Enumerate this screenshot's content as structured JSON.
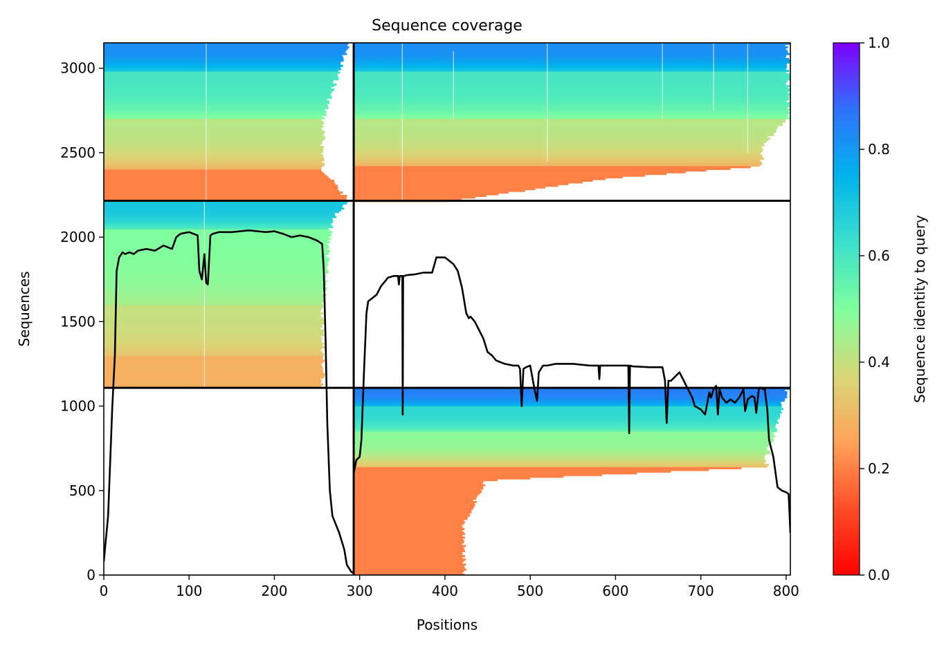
{
  "chart_data": {
    "type": "heatmap",
    "title": "Sequence coverage",
    "xlabel": "Positions",
    "ylabel": "Sequences",
    "xlim": [
      0,
      805
    ],
    "ylim": [
      0,
      3150
    ],
    "xticks": [
      0,
      100,
      200,
      300,
      400,
      500,
      600,
      700,
      800
    ],
    "yticks": [
      0,
      500,
      1000,
      1500,
      2000,
      2500,
      3000
    ],
    "colorbar": {
      "label": "Sequence identity to query",
      "range": [
        0,
        1
      ],
      "ticks": [
        "0.0",
        "0.2",
        "0.4",
        "0.6",
        "0.8",
        "1.0"
      ],
      "colormap": "rainbow_r"
    },
    "block_dividers": {
      "x": [
        293
      ],
      "y": [
        1108,
        2215
      ]
    },
    "blocks": [
      {
        "name": "top-left",
        "x": [
          0,
          293
        ],
        "y": [
          2215,
          3150
        ],
        "bands": [
          [
            3150,
            2980,
            0.82
          ],
          [
            2980,
            2700,
            0.6
          ],
          [
            2700,
            2400,
            0.42
          ],
          [
            2400,
            2215,
            0.2
          ]
        ],
        "right_edge": [
          [
            3150,
            290
          ],
          [
            3000,
            280
          ],
          [
            2700,
            260
          ],
          [
            2400,
            260
          ],
          [
            2215,
            290
          ]
        ]
      },
      {
        "name": "top-right",
        "x": [
          293,
          805
        ],
        "y": [
          2215,
          3150
        ],
        "bands": [
          [
            3150,
            2980,
            0.82
          ],
          [
            2980,
            2700,
            0.6
          ],
          [
            2700,
            2420,
            0.42
          ],
          [
            2420,
            2215,
            0.2
          ]
        ],
        "right_edge": [
          [
            3150,
            805
          ],
          [
            2700,
            805
          ],
          [
            2550,
            775
          ],
          [
            2420,
            775
          ],
          [
            2350,
            600
          ],
          [
            2215,
            410
          ]
        ]
      },
      {
        "name": "middle-left",
        "x": [
          0,
          293
        ],
        "y": [
          1108,
          2215
        ],
        "bands": [
          [
            2215,
            2050,
            0.7
          ],
          [
            2050,
            1600,
            0.5
          ],
          [
            1600,
            1300,
            0.4
          ],
          [
            1300,
            1108,
            0.28
          ]
        ],
        "right_edge": [
          [
            2215,
            290
          ],
          [
            2100,
            270
          ],
          [
            1600,
            260
          ],
          [
            1108,
            260
          ]
        ]
      },
      {
        "name": "bottom-right",
        "x": [
          293,
          805
        ],
        "y": [
          0,
          1108
        ],
        "bands": [
          [
            1108,
            1000,
            0.85
          ],
          [
            1000,
            850,
            0.65
          ],
          [
            850,
            640,
            0.48
          ],
          [
            640,
            0,
            0.2
          ]
        ],
        "right_edge": [
          [
            1108,
            805
          ],
          [
            700,
            780
          ],
          [
            640,
            780
          ],
          [
            560,
            450
          ],
          [
            300,
            425
          ],
          [
            0,
            425
          ]
        ]
      }
    ],
    "series": [
      {
        "x": [
          0,
          5,
          10,
          13,
          15,
          18,
          22,
          25,
          30,
          35,
          40,
          50,
          60,
          70,
          80,
          85,
          90,
          100,
          105,
          110,
          112,
          115,
          118,
          120,
          122,
          125,
          128,
          135,
          150,
          170,
          190,
          200,
          210,
          220,
          230,
          240,
          250,
          256,
          258,
          260,
          262,
          265,
          268,
          272,
          276,
          282,
          285,
          290,
          293,
          293,
          296,
          300,
          302,
          305,
          308,
          310,
          315,
          320,
          325,
          330,
          333,
          340,
          345,
          346,
          347,
          350,
          350.5,
          351,
          352,
          355,
          365,
          375,
          385,
          390,
          395,
          400,
          405,
          410,
          415,
          420,
          425,
          428,
          430,
          435,
          445,
          450,
          455,
          460,
          470,
          480,
          486,
          488,
          490,
          492,
          495,
          500,
          505,
          508,
          510,
          515,
          520,
          530,
          540,
          550,
          560,
          570,
          580,
          581,
          582,
          590,
          600,
          610,
          615,
          616,
          617,
          620,
          640,
          655,
          658,
          660,
          662,
          665,
          675,
          680,
          685,
          690,
          693,
          700,
          705,
          710,
          712,
          715,
          718,
          720,
          722,
          725,
          730,
          735,
          740,
          745,
          750,
          752,
          755,
          760,
          763,
          765,
          768,
          770,
          773,
          775,
          778,
          780,
          785,
          790,
          795,
          800,
          803,
          805
        ],
        "y": [
          80,
          350,
          1000,
          1300,
          1800,
          1880,
          1910,
          1900,
          1910,
          1900,
          1920,
          1930,
          1920,
          1950,
          1930,
          2000,
          2020,
          2030,
          2020,
          2010,
          1800,
          1750,
          1900,
          1730,
          1720,
          2010,
          2020,
          2030,
          2030,
          2040,
          2030,
          2035,
          2020,
          2000,
          2010,
          2000,
          1980,
          1960,
          1800,
          1400,
          900,
          500,
          350,
          300,
          250,
          150,
          60,
          20,
          10,
          600,
          680,
          700,
          800,
          1200,
          1550,
          1620,
          1640,
          1660,
          1710,
          1740,
          1760,
          1770,
          1770,
          1720,
          1770,
          1770,
          950,
          1770,
          1770,
          1775,
          1780,
          1790,
          1790,
          1880,
          1880,
          1880,
          1860,
          1840,
          1800,
          1700,
          1550,
          1520,
          1530,
          1500,
          1400,
          1320,
          1300,
          1270,
          1250,
          1240,
          1240,
          1220,
          1000,
          1220,
          1230,
          1240,
          1100,
          1030,
          1200,
          1240,
          1240,
          1250,
          1250,
          1250,
          1245,
          1240,
          1240,
          1160,
          1240,
          1240,
          1240,
          1240,
          1240,
          840,
          1240,
          1235,
          1230,
          1230,
          1150,
          900,
          1150,
          1150,
          1200,
          1150,
          1100,
          1050,
          1000,
          980,
          950,
          1080,
          1050,
          1100,
          1120,
          950,
          1100,
          1050,
          1020,
          1040,
          1020,
          1050,
          1100,
          970,
          1040,
          1060,
          1050,
          960,
          1100,
          1110,
          1100,
          1100,
          980,
          800,
          700,
          520,
          500,
          490,
          480,
          250
        ]
      }
    ]
  }
}
